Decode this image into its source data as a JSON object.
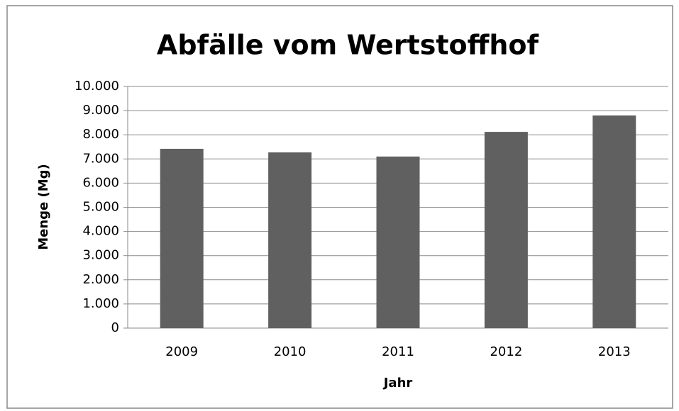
{
  "chart_data": {
    "type": "bar",
    "title": "Abfälle vom Wertstoffhof",
    "x_label": "Jahr",
    "y_label": "Menge (Mg)",
    "categories": [
      "2009",
      "2010",
      "2011",
      "2012",
      "2013"
    ],
    "values": [
      7420,
      7270,
      7100,
      8120,
      8800
    ],
    "color": "#606060",
    "ylim": [
      0,
      10000
    ],
    "yticks": [
      0,
      {
        "value": 1000,
        "label": "1.000"
      },
      {
        "value": 2000,
        "label": "2.000"
      },
      {
        "value": 3000,
        "label": "3.000"
      },
      {
        "value": 4000,
        "label": "4.000"
      },
      {
        "value": 5000,
        "label": "5.000"
      },
      {
        "value": 6000,
        "label": "6.000"
      },
      {
        "value": 7000,
        "label": "7.000"
      },
      {
        "value": 8000,
        "label": "8.000"
      },
      {
        "value": 9000,
        "label": "9.000"
      },
      {
        "value": 10000,
        "label": "10.000"
      }
    ],
    "grid": true
  }
}
